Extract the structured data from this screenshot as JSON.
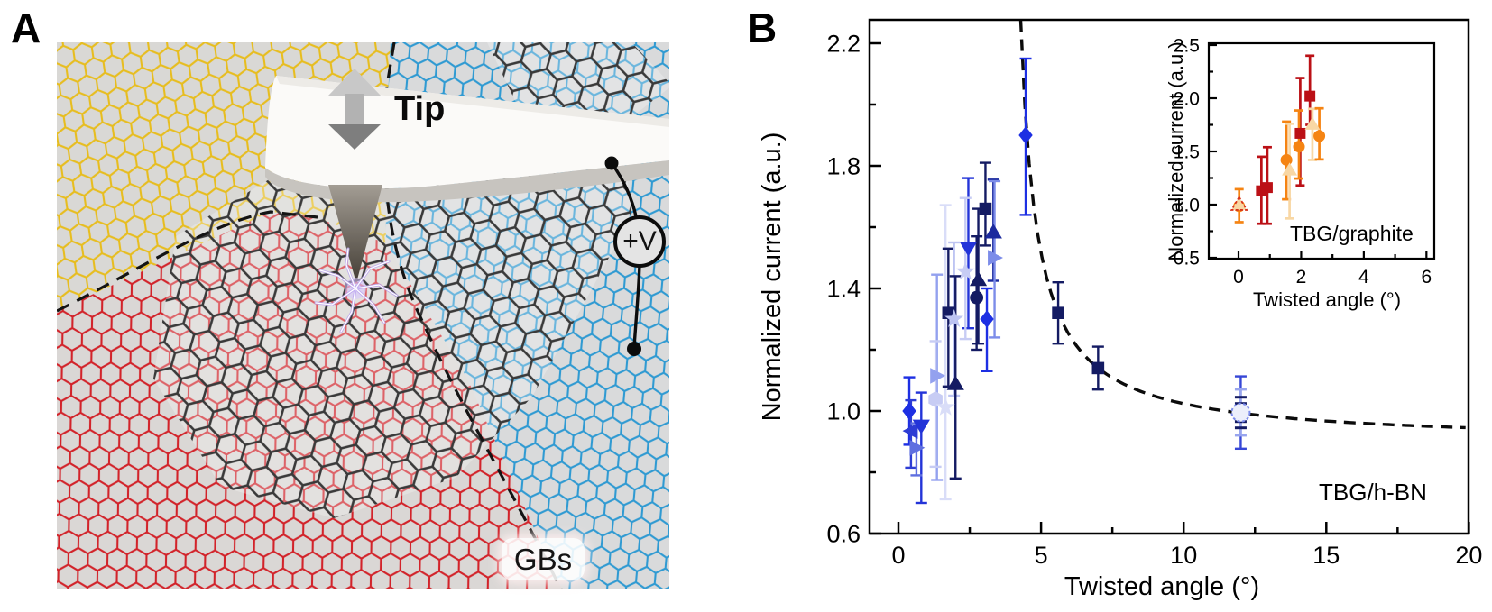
{
  "figure": {
    "panel_a": {
      "label": "A",
      "annotations": {
        "tip": "Tip",
        "voltage": "+V",
        "grain_boundaries": "GBs"
      },
      "colors": {
        "lattice_yellow": "#e7bd1f",
        "lattice_blue": "#2f9ad2",
        "lattice_red": "#d2232a",
        "lattice_dark": "#3a3a3a",
        "substrate": "#dcdbd9",
        "cantilever": "#fbfaf8",
        "cantilever_edge": "#c7c4bf",
        "tip_top": "#a39d94",
        "tip_bottom": "#433d35",
        "lightning": "#b9a2f0",
        "wire": "#0c0c0c"
      }
    },
    "panel_b": {
      "label": "B"
    }
  },
  "chart_data": [
    {
      "id": "main",
      "type": "scatter",
      "xlabel": "Twisted angle (°)",
      "ylabel": "Normalized current (a.u.)",
      "annotation": "TBG/h-BN",
      "xlim": [
        -1.0,
        20.0
      ],
      "ylim": [
        0.6,
        2.28
      ],
      "xticks": [
        0,
        5,
        10,
        15,
        20
      ],
      "xtick_labels": [
        "0",
        "5",
        "10",
        "15",
        "20"
      ],
      "xminor": [
        2.5,
        7.5,
        12.5,
        17.5
      ],
      "yticks": [
        0.6,
        1.0,
        1.4,
        1.8,
        2.2
      ],
      "ytick_labels": [
        "0.6",
        "1.0",
        "1.4",
        "1.8",
        "2.2"
      ],
      "yminor": [
        0.8,
        1.2,
        1.6,
        2.0
      ],
      "grid": false,
      "fit_curve": {
        "model": "y = b + c/(x - a)",
        "a": 3.7,
        "b": 0.896,
        "c": 0.806,
        "x_range": [
          4.284,
          20
        ],
        "style": "dashed",
        "color": "#0b0b0b"
      },
      "points": [
        {
          "x": 0.38,
          "y": 1.0,
          "el": 0.11,
          "eh": 0.11,
          "marker": "diamond",
          "color": "#1d2fe3"
        },
        {
          "x": 0.44,
          "y": 0.935,
          "el": 0.12,
          "eh": 0.1,
          "marker": "tri-left",
          "color": "#2d3cd4"
        },
        {
          "x": 0.8,
          "y": 0.95,
          "el": 0.25,
          "eh": 0.11,
          "marker": "tri-down",
          "color": "#2334d8"
        },
        {
          "x": 0.63,
          "y": 0.88,
          "el": 0.09,
          "eh": 0.08,
          "marker": "tri-right",
          "color": "#5f6fe0"
        },
        {
          "x": 1.35,
          "y": 1.115,
          "el": 0.34,
          "eh": 0.33,
          "marker": "tri-right",
          "color": "#93a1ef"
        },
        {
          "x": 1.3,
          "y": 1.038,
          "el": 0.22,
          "eh": 0.19,
          "marker": "hexagon",
          "color": "#c7ccf4"
        },
        {
          "x": 1.65,
          "y": 1.012,
          "el": 0.3,
          "eh": 0.66,
          "marker": "star",
          "color": "#d9ddf8"
        },
        {
          "x": 1.75,
          "y": 1.32,
          "el": 0.24,
          "eh": 0.21,
          "marker": "square",
          "color": "#141b63"
        },
        {
          "x": 1.95,
          "y": 1.3,
          "el": 0.25,
          "eh": 0.25,
          "marker": "star",
          "color": "#bdc4f2"
        },
        {
          "x": 2.0,
          "y": 1.09,
          "el": 0.31,
          "eh": 0.35,
          "marker": "tri-up",
          "color": "#141b63"
        },
        {
          "x": 2.45,
          "y": 1.53,
          "el": 0.26,
          "eh": 0.23,
          "marker": "tri-down",
          "color": "#2334d8"
        },
        {
          "x": 2.35,
          "y": 1.455,
          "el": 0.22,
          "eh": 0.24,
          "marker": "star",
          "color": "#c7ccf4"
        },
        {
          "x": 2.8,
          "y": 1.43,
          "el": 0.21,
          "eh": 0.23,
          "marker": "tri-up",
          "color": "#141b63"
        },
        {
          "x": 2.74,
          "y": 1.37,
          "el": 0.17,
          "eh": 0.2,
          "marker": "circle",
          "color": "#141b63"
        },
        {
          "x": 3.05,
          "y": 1.66,
          "el": 0.12,
          "eh": 0.15,
          "marker": "square",
          "color": "#141b63"
        },
        {
          "x": 3.33,
          "y": 1.585,
          "el": 0.16,
          "eh": 0.17,
          "marker": "tri-up",
          "color": "#1b2a9e"
        },
        {
          "x": 3.37,
          "y": 1.5,
          "el": 0.26,
          "eh": 0.25,
          "marker": "tri-right",
          "color": "#7c8ce9"
        },
        {
          "x": 3.1,
          "y": 1.3,
          "el": 0.17,
          "eh": 0.1,
          "marker": "diamond",
          "color": "#1d2fe3"
        },
        {
          "x": 4.46,
          "y": 1.9,
          "el": 0.26,
          "eh": 0.25,
          "marker": "diamond",
          "color": "#1d2fe3"
        },
        {
          "x": 5.6,
          "y": 1.32,
          "el": 0.1,
          "eh": 0.1,
          "marker": "square",
          "color": "#141b63"
        },
        {
          "x": 7.0,
          "y": 1.14,
          "el": 0.07,
          "eh": 0.07,
          "marker": "square",
          "color": "#141b63"
        },
        {
          "x": 12.0,
          "y": 0.995,
          "el": 0.118,
          "eh": 0.118,
          "marker": "none",
          "color": "#3747d6"
        },
        {
          "x": 12.0,
          "y": 0.995,
          "el": 0.075,
          "eh": 0.075,
          "marker": "none",
          "color": "#98a5ee"
        },
        {
          "x": 12.0,
          "y": 0.995,
          "el": 0,
          "eh": 0,
          "marker": "dash-stack",
          "color": "#141b63"
        },
        {
          "x": 12.0,
          "y": 0.995,
          "el": 0,
          "eh": 0,
          "marker": "open-circle",
          "color": "#7b8beb"
        }
      ]
    },
    {
      "id": "inset",
      "type": "scatter",
      "xlabel": "Twisted angle (°)",
      "ylabel": "Normalized current (a.u.)",
      "annotation": "TBG/graphite",
      "xlim": [
        -0.95,
        6.25
      ],
      "ylim": [
        0.49,
        2.52
      ],
      "xticks": [
        0,
        2,
        4,
        6
      ],
      "xtick_labels": [
        "0",
        "2",
        "4",
        "6"
      ],
      "xminor": [
        1,
        3,
        5
      ],
      "yticks": [
        0.5,
        1.0,
        1.5,
        2.0,
        2.5
      ],
      "ytick_labels": [
        "0.5",
        "1.0",
        "1.5",
        "2.0",
        "2.5"
      ],
      "yminor": [
        0.75,
        1.25,
        1.75,
        2.25
      ],
      "grid": false,
      "points": [
        {
          "x": 0.02,
          "y": 0.985,
          "el": 0.15,
          "eh": 0.16,
          "marker": "circle",
          "color": "#f58413"
        },
        {
          "x": 0.02,
          "y": 1.005,
          "el": 0,
          "eh": 0,
          "marker": "tri-up-dashed",
          "color": "#f8d7a4"
        },
        {
          "x": 0.73,
          "y": 1.13,
          "el": 0.31,
          "eh": 0.32,
          "marker": "square",
          "color": "#bb1016"
        },
        {
          "x": 0.92,
          "y": 1.16,
          "el": 0.34,
          "eh": 0.38,
          "marker": "square",
          "color": "#bb1016"
        },
        {
          "x": 1.53,
          "y": 1.42,
          "el": 0.37,
          "eh": 0.36,
          "marker": "circle",
          "color": "#f58413"
        },
        {
          "x": 1.63,
          "y": 1.33,
          "el": 0.46,
          "eh": 0.43,
          "marker": "tri-up",
          "color": "#f8d7a4"
        },
        {
          "x": 1.97,
          "y": 1.67,
          "el": 0.49,
          "eh": 0.52,
          "marker": "square",
          "color": "#bb1016"
        },
        {
          "x": 1.93,
          "y": 1.545,
          "el": 0.3,
          "eh": 0.34,
          "marker": "circle",
          "color": "#f58413"
        },
        {
          "x": 2.28,
          "y": 2.02,
          "el": 0.27,
          "eh": 0.38,
          "marker": "square",
          "color": "#bb1016"
        },
        {
          "x": 2.36,
          "y": 1.76,
          "el": 0.34,
          "eh": 0.14,
          "marker": "tri-up",
          "color": "#f8d7a4"
        },
        {
          "x": 2.58,
          "y": 1.645,
          "el": 0.22,
          "eh": 0.26,
          "marker": "circle",
          "color": "#f58413"
        }
      ]
    }
  ]
}
